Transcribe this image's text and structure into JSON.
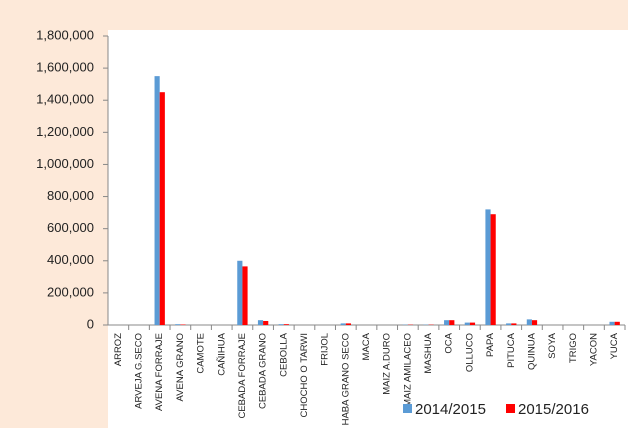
{
  "chart_data": {
    "type": "bar",
    "categories": [
      "ARROZ",
      "ARVEJA G.SECO",
      "AVENA FORRAJE",
      "AVENA GRANO",
      "CAMOTE",
      "CAÑIHUA",
      "CEBADA FORRAJE",
      "CEBADA GRANO",
      "CEBOLLA",
      "CHOCHO O TARWI",
      "FRIJOL",
      "HABA GRANO SECO",
      "MACA",
      "MAIZ A.DURO",
      "MAIZ AMILACEO",
      "MASHUA",
      "OCA",
      "OLLUCO",
      "PAPA",
      "PITUCA",
      "QUINUA",
      "SOYA",
      "TRIGO",
      "YACON",
      "YUCA"
    ],
    "series": [
      {
        "name": "2014/2015",
        "color": "#5b9bd5",
        "values": [
          0,
          0,
          1550000,
          5000,
          0,
          0,
          400000,
          30000,
          5000,
          0,
          0,
          10000,
          0,
          0,
          2000,
          2000,
          30000,
          15000,
          720000,
          10000,
          35000,
          0,
          0,
          0,
          20000
        ]
      },
      {
        "name": "2015/2016",
        "color": "#ff0000",
        "values": [
          0,
          0,
          1450000,
          3000,
          0,
          0,
          365000,
          25000,
          5000,
          0,
          0,
          10000,
          0,
          0,
          2000,
          2000,
          30000,
          15000,
          690000,
          10000,
          30000,
          0,
          0,
          0,
          20000
        ]
      }
    ],
    "ylim": [
      0,
      1800000
    ],
    "yticks": [
      0,
      {
        "value": 200000,
        "label": "200,000"
      },
      {
        "value": 400000,
        "label": "400,000"
      },
      {
        "value": 600000,
        "label": "600,000"
      },
      {
        "value": 800000,
        "label": "800,000"
      },
      {
        "value": 1000000,
        "label": "1,000,000"
      },
      {
        "value": 1200000,
        "label": "1,200,000"
      },
      {
        "value": 1400000,
        "label": "1,400,000"
      },
      {
        "value": 1600000,
        "label": "1,600,000"
      },
      {
        "value": 1800000,
        "label": "1,800,000"
      }
    ],
    "grid": false,
    "legend": "bottom-right"
  }
}
